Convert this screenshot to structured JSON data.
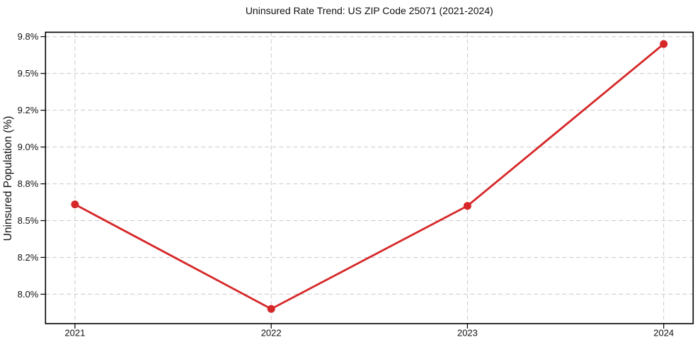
{
  "chart_data": {
    "type": "line",
    "title": "Uninsured Rate Trend: US ZIP Code 25071 (2021-2024)",
    "ylabel": "Uninsured Population (%)",
    "xlabel": "",
    "x": [
      2021,
      2022,
      2023,
      2024
    ],
    "x_tick_labels": [
      "2021",
      "2022",
      "2023",
      "2024"
    ],
    "values": [
      8.61,
      7.9,
      8.6,
      9.7
    ],
    "value_unit": "%",
    "y_ticks": [
      {
        "value": 8.0,
        "label": "8.0%"
      },
      {
        "value": 8.25,
        "label": "8.2%"
      },
      {
        "value": 8.5,
        "label": "8.5%"
      },
      {
        "value": 8.75,
        "label": "8.8%"
      },
      {
        "value": 9.0,
        "label": "9.0%"
      },
      {
        "value": 9.25,
        "label": "9.2%"
      },
      {
        "value": 9.5,
        "label": "9.5%"
      },
      {
        "value": 9.75,
        "label": "9.8%"
      }
    ],
    "xlim": [
      2020.85,
      2024.15
    ],
    "ylim": [
      7.8,
      9.78
    ],
    "grid": true,
    "grid_style": "dashed",
    "legend": "none",
    "line_color": "#d62728",
    "marker": "circle",
    "grid_color": "#c9c9c9",
    "spine_color": "#000000",
    "background": "#ffffff"
  }
}
